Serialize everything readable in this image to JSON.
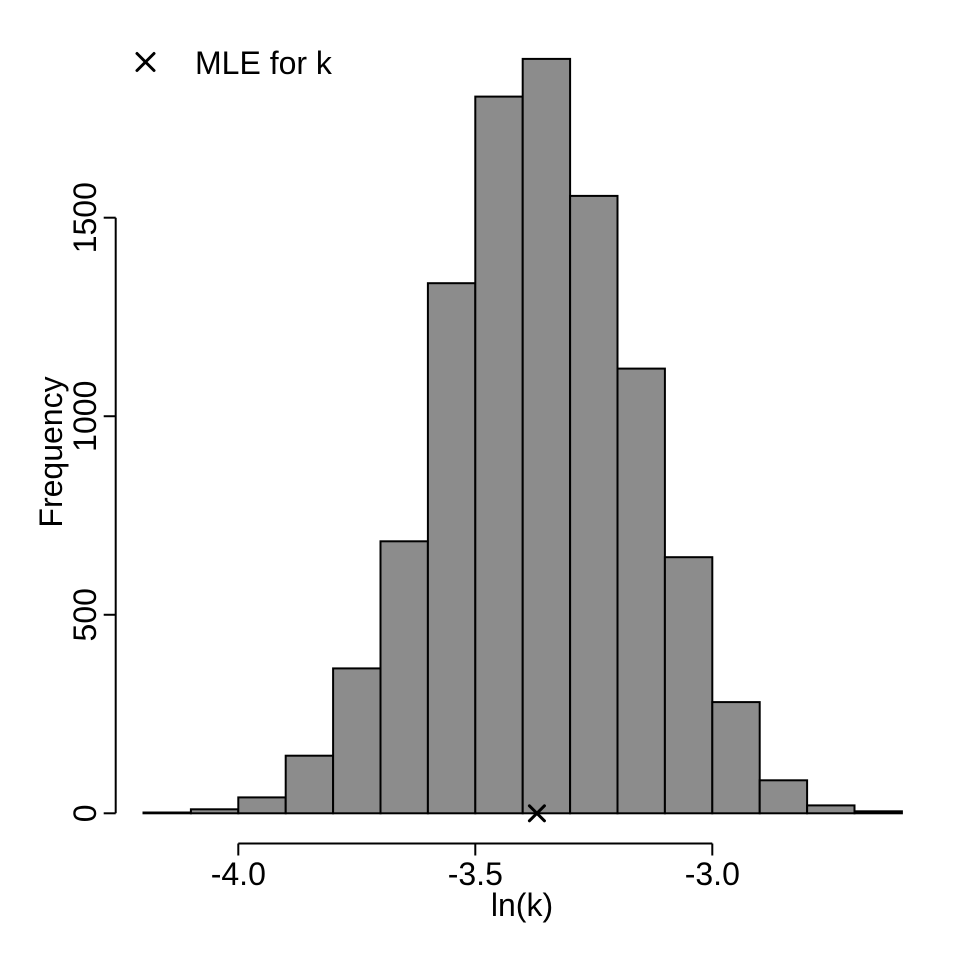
{
  "colors": {
    "background": "#ffffff",
    "bar_fill": "#8c8c8c",
    "bar_stroke": "#000000",
    "axis": "#000000",
    "text": "#000000"
  },
  "legend": {
    "position": "top-left",
    "items": [
      {
        "marker": "x-cross-icon",
        "label": "MLE for k"
      }
    ]
  },
  "chart_data": {
    "type": "bar",
    "subtype": "histogram",
    "title": "",
    "xlabel": "ln(k)",
    "ylabel": "Frequency",
    "grid": false,
    "xlim": [
      -4.2,
      -2.6
    ],
    "ylim": [
      0,
      1900
    ],
    "bin_width": 0.1,
    "bin_edges": [
      -4.2,
      -4.1,
      -4.0,
      -3.9,
      -3.8,
      -3.7,
      -3.6,
      -3.5,
      -3.4,
      -3.3,
      -3.2,
      -3.1,
      -3.0,
      -2.9,
      -2.8,
      -2.7,
      -2.6
    ],
    "frequencies": [
      2,
      10,
      40,
      145,
      365,
      685,
      1335,
      1805,
      1900,
      1555,
      1120,
      645,
      280,
      83,
      20,
      5
    ],
    "x_ticks": [
      {
        "value": -4.0,
        "label": "-4.0"
      },
      {
        "value": -3.5,
        "label": "-3.5"
      },
      {
        "value": -3.0,
        "label": "-3.0"
      }
    ],
    "y_ticks": [
      {
        "value": 0,
        "label": "0"
      },
      {
        "value": 500,
        "label": "500"
      },
      {
        "value": 1000,
        "label": "1000"
      },
      {
        "value": 1500,
        "label": "1500"
      }
    ],
    "annotations": [
      {
        "type": "point-marker",
        "shape": "x-cross",
        "label": "MLE for k",
        "x": -3.37,
        "y": 0
      }
    ]
  }
}
